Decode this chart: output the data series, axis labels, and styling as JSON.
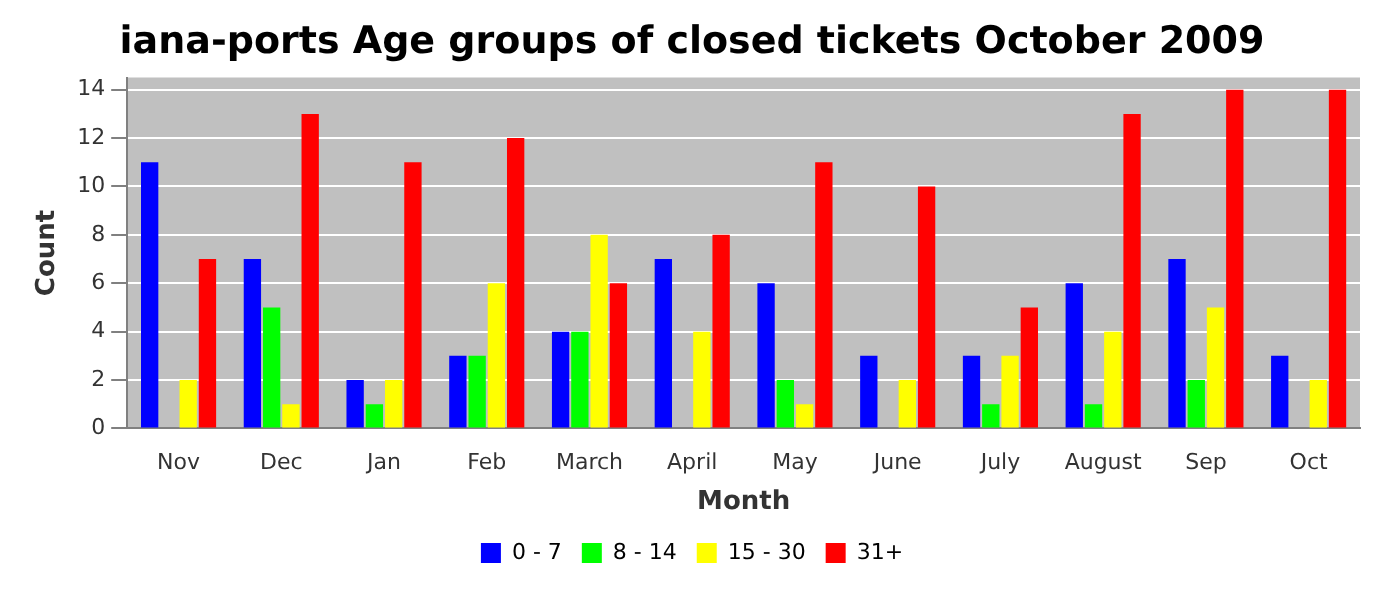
{
  "chart_data": {
    "type": "bar",
    "title": "iana-ports Age groups of closed tickets October 2009",
    "xlabel": "Month",
    "ylabel": "Count",
    "categories": [
      "Nov",
      "Dec",
      "Jan",
      "Feb",
      "March",
      "April",
      "May",
      "June",
      "July",
      "August",
      "Sep",
      "Oct"
    ],
    "series": [
      {
        "name": "0 - 7",
        "color": "#0000ff",
        "values": [
          11,
          7,
          2,
          3,
          4,
          7,
          6,
          3,
          3,
          6,
          7,
          3
        ]
      },
      {
        "name": "8 - 14",
        "color": "#00ff00",
        "values": [
          0,
          5,
          1,
          3,
          4,
          0,
          2,
          0,
          1,
          1,
          2,
          0
        ]
      },
      {
        "name": "15 - 30",
        "color": "#ffff00",
        "values": [
          2,
          1,
          2,
          6,
          8,
          4,
          1,
          2,
          3,
          4,
          5,
          2
        ]
      },
      {
        "name": "31+",
        "color": "#ff0000",
        "values": [
          7,
          13,
          11,
          12,
          6,
          8,
          11,
          10,
          5,
          13,
          14,
          14
        ]
      }
    ],
    "ylim": [
      0,
      14.5
    ],
    "yticks": [
      0,
      2,
      4,
      6,
      8,
      10,
      12,
      14
    ],
    "grid": "y",
    "legend": "bottom"
  }
}
